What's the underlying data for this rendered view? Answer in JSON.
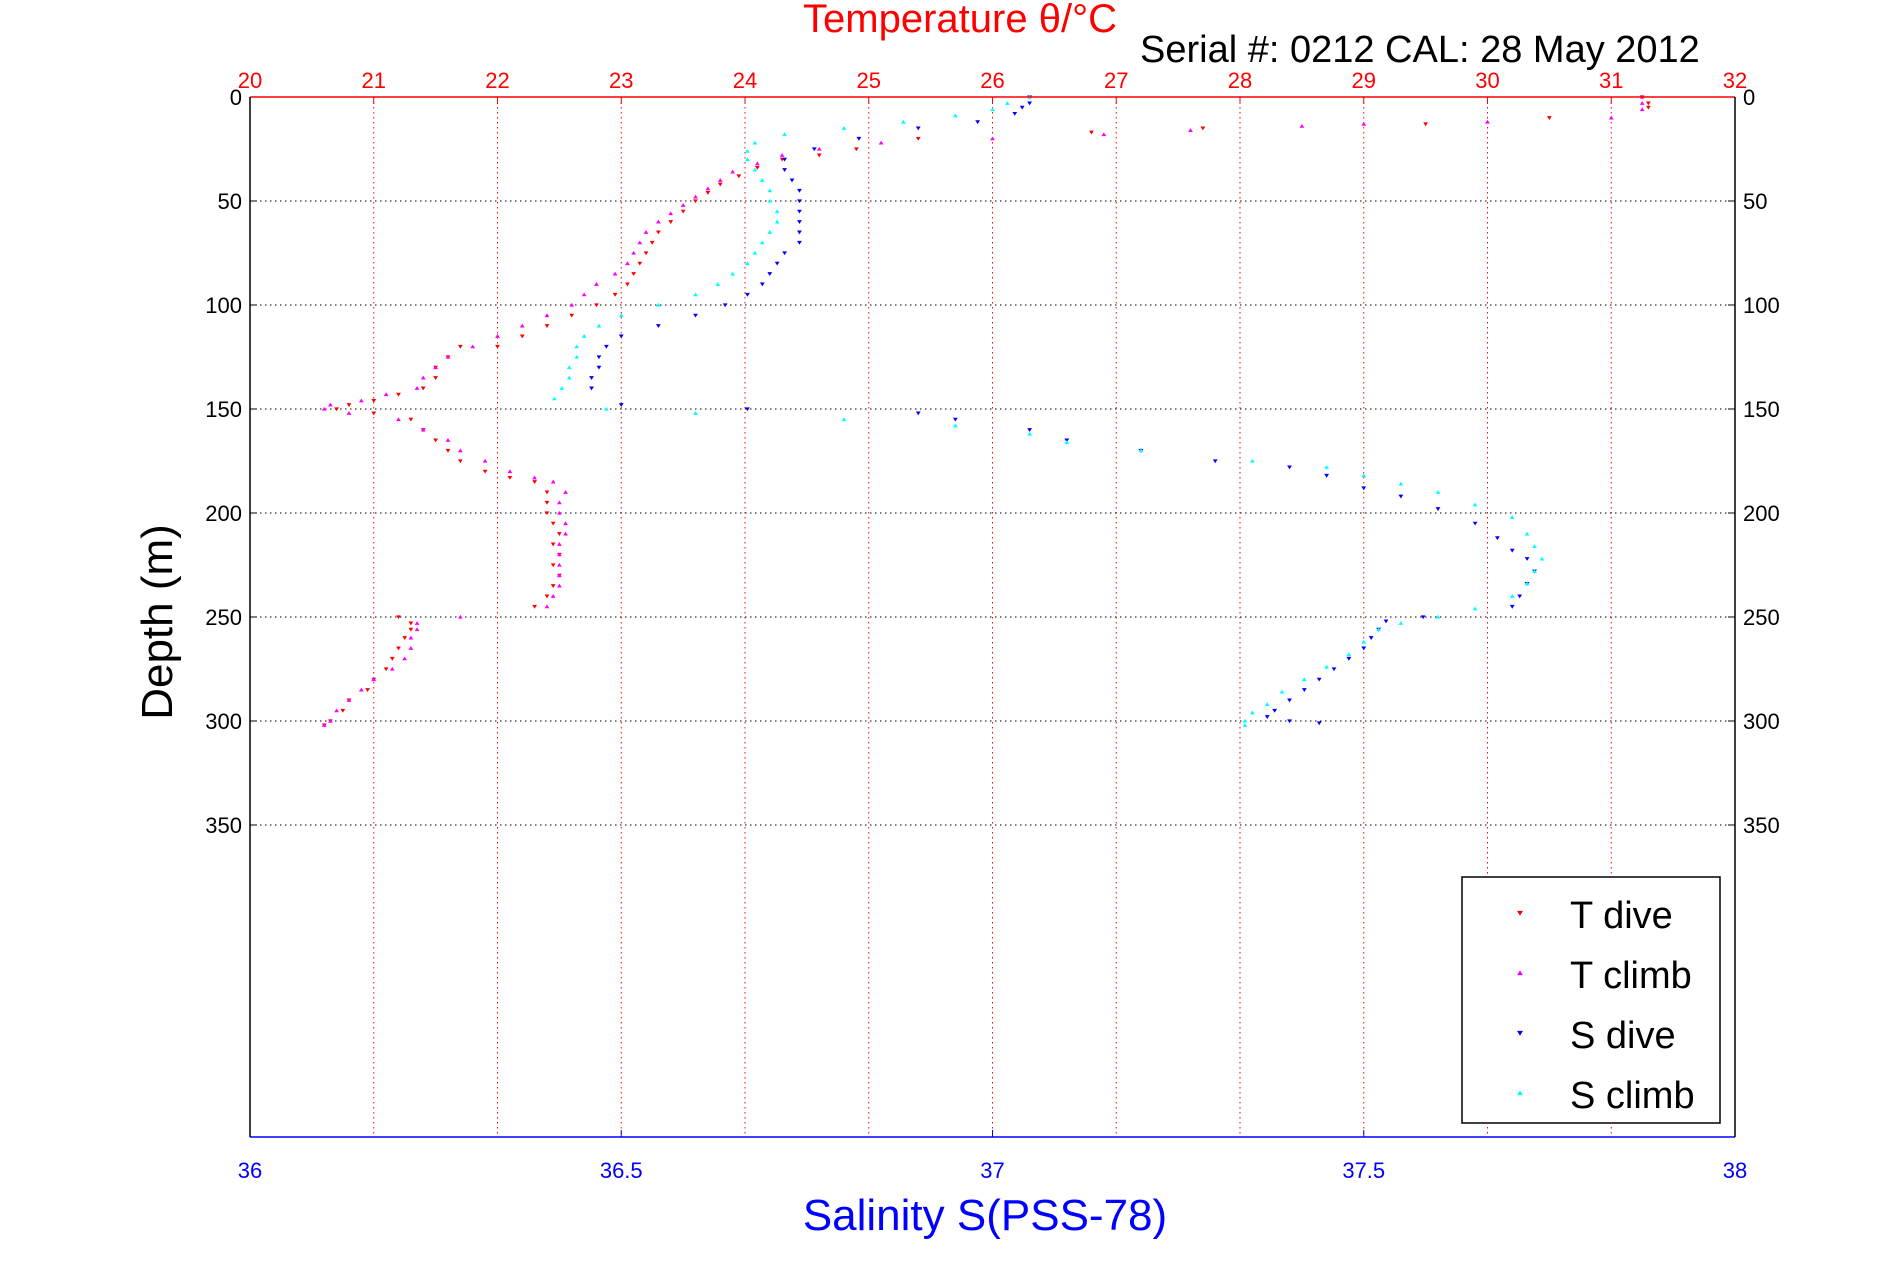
{
  "chart_data": {
    "type": "scatter",
    "title": "Temperature θ/°C",
    "subtitle": "Serial #: 0212  CAL: 28 May 2012",
    "ylabel": "Depth (m)",
    "xlabel_bottom": "Salinity S(PSS-78)",
    "x_top_ticks": [
      "20",
      "21",
      "22",
      "23",
      "24",
      "25",
      "26",
      "27",
      "28",
      "29",
      "30",
      "31",
      "32"
    ],
    "x_bottom_ticks": [
      "36",
      "36.5",
      "37",
      "37.5",
      "38"
    ],
    "y_ticks": [
      "0",
      "50",
      "100",
      "150",
      "200",
      "250",
      "300",
      "350"
    ],
    "x_top_range": [
      20,
      32
    ],
    "x_bottom_range": [
      36,
      38
    ],
    "y_range": [
      0,
      500
    ],
    "y_reversed": true,
    "grid": true,
    "legend_position": "bottom-right",
    "colors": {
      "temperature_axis": "#ff0000",
      "salinity_axis": "#0000ff",
      "t_dive": "#ff0000",
      "t_climb": "#ff00ff",
      "s_dive": "#0000ff",
      "s_climb": "#00ffff"
    },
    "series": [
      {
        "name": "T dive",
        "axis": "temperature",
        "marker": "triangle-down",
        "color": "#ff0000",
        "points": [
          [
            31.25,
            0
          ],
          [
            31.3,
            3
          ],
          [
            31.3,
            5
          ],
          [
            30.5,
            10
          ],
          [
            29.5,
            13
          ],
          [
            27.7,
            15
          ],
          [
            26.8,
            17
          ],
          [
            25.4,
            20
          ],
          [
            24.9,
            25
          ],
          [
            24.6,
            28
          ],
          [
            24.3,
            30
          ],
          [
            24.1,
            34
          ],
          [
            23.95,
            38
          ],
          [
            23.8,
            42
          ],
          [
            23.7,
            46
          ],
          [
            23.6,
            50
          ],
          [
            23.5,
            55
          ],
          [
            23.4,
            60
          ],
          [
            23.3,
            65
          ],
          [
            23.25,
            70
          ],
          [
            23.2,
            75
          ],
          [
            23.15,
            80
          ],
          [
            23.1,
            85
          ],
          [
            23.05,
            90
          ],
          [
            22.95,
            95
          ],
          [
            22.8,
            100
          ],
          [
            22.6,
            105
          ],
          [
            22.4,
            110
          ],
          [
            22.2,
            115
          ],
          [
            22.0,
            120
          ],
          [
            21.7,
            120
          ],
          [
            21.6,
            125
          ],
          [
            21.5,
            130
          ],
          [
            21.5,
            135
          ],
          [
            21.4,
            140
          ],
          [
            21.2,
            143
          ],
          [
            21.0,
            146
          ],
          [
            20.8,
            148
          ],
          [
            20.7,
            150
          ],
          [
            21.0,
            152
          ],
          [
            21.3,
            155
          ],
          [
            21.4,
            160
          ],
          [
            21.5,
            165
          ],
          [
            21.6,
            170
          ],
          [
            21.7,
            175
          ],
          [
            21.9,
            180
          ],
          [
            22.1,
            183
          ],
          [
            22.3,
            185
          ],
          [
            22.4,
            190
          ],
          [
            22.4,
            195
          ],
          [
            22.4,
            200
          ],
          [
            22.45,
            205
          ],
          [
            22.5,
            210
          ],
          [
            22.45,
            215
          ],
          [
            22.5,
            220
          ],
          [
            22.45,
            225
          ],
          [
            22.5,
            230
          ],
          [
            22.45,
            235
          ],
          [
            22.4,
            240
          ],
          [
            22.3,
            245
          ],
          [
            21.2,
            250
          ],
          [
            21.3,
            253
          ],
          [
            21.3,
            256
          ],
          [
            21.25,
            260
          ],
          [
            21.2,
            265
          ],
          [
            21.15,
            270
          ],
          [
            21.1,
            275
          ],
          [
            21.0,
            280
          ],
          [
            20.95,
            285
          ],
          [
            20.8,
            290
          ],
          [
            20.75,
            295
          ],
          [
            20.65,
            300
          ],
          [
            20.6,
            302
          ]
        ]
      },
      {
        "name": "T climb",
        "axis": "temperature",
        "marker": "triangle-up",
        "color": "#ff00ff",
        "points": [
          [
            31.25,
            0
          ],
          [
            31.25,
            3
          ],
          [
            31.25,
            6
          ],
          [
            31.0,
            10
          ],
          [
            30.0,
            12
          ],
          [
            29.0,
            13
          ],
          [
            28.5,
            14
          ],
          [
            27.6,
            16
          ],
          [
            26.9,
            18
          ],
          [
            26.0,
            20
          ],
          [
            25.1,
            22
          ],
          [
            24.6,
            25
          ],
          [
            24.3,
            28
          ],
          [
            24.1,
            32
          ],
          [
            23.9,
            36
          ],
          [
            23.8,
            40
          ],
          [
            23.7,
            44
          ],
          [
            23.6,
            48
          ],
          [
            23.5,
            52
          ],
          [
            23.4,
            56
          ],
          [
            23.3,
            60
          ],
          [
            23.2,
            65
          ],
          [
            23.15,
            70
          ],
          [
            23.1,
            75
          ],
          [
            23.05,
            80
          ],
          [
            22.95,
            85
          ],
          [
            22.8,
            90
          ],
          [
            22.7,
            95
          ],
          [
            22.6,
            100
          ],
          [
            22.4,
            105
          ],
          [
            22.2,
            110
          ],
          [
            22.0,
            115
          ],
          [
            21.8,
            120
          ],
          [
            21.6,
            125
          ],
          [
            21.5,
            130
          ],
          [
            21.4,
            135
          ],
          [
            21.35,
            140
          ],
          [
            21.1,
            143
          ],
          [
            20.9,
            146
          ],
          [
            20.65,
            148
          ],
          [
            20.6,
            150
          ],
          [
            20.8,
            152
          ],
          [
            21.2,
            155
          ],
          [
            21.4,
            160
          ],
          [
            21.6,
            165
          ],
          [
            21.7,
            170
          ],
          [
            21.9,
            175
          ],
          [
            22.1,
            180
          ],
          [
            22.3,
            183
          ],
          [
            22.45,
            185
          ],
          [
            22.55,
            190
          ],
          [
            22.5,
            195
          ],
          [
            22.5,
            200
          ],
          [
            22.55,
            205
          ],
          [
            22.55,
            210
          ],
          [
            22.5,
            215
          ],
          [
            22.5,
            220
          ],
          [
            22.5,
            225
          ],
          [
            22.5,
            230
          ],
          [
            22.5,
            235
          ],
          [
            22.45,
            240
          ],
          [
            22.4,
            245
          ],
          [
            21.7,
            250
          ],
          [
            21.35,
            253
          ],
          [
            21.35,
            256
          ],
          [
            21.3,
            260
          ],
          [
            21.3,
            265
          ],
          [
            21.25,
            270
          ],
          [
            21.15,
            275
          ],
          [
            21.0,
            280
          ],
          [
            20.9,
            285
          ],
          [
            20.8,
            290
          ],
          [
            20.7,
            295
          ],
          [
            20.65,
            300
          ],
          [
            20.6,
            302
          ]
        ]
      },
      {
        "name": "S dive",
        "axis": "salinity",
        "marker": "triangle-down",
        "color": "#0000ff",
        "points": [
          [
            37.05,
            0
          ],
          [
            37.05,
            3
          ],
          [
            37.04,
            5
          ],
          [
            37.03,
            8
          ],
          [
            36.98,
            12
          ],
          [
            36.9,
            15
          ],
          [
            36.82,
            20
          ],
          [
            36.76,
            25
          ],
          [
            36.72,
            30
          ],
          [
            36.72,
            35
          ],
          [
            36.73,
            40
          ],
          [
            36.74,
            45
          ],
          [
            36.74,
            50
          ],
          [
            36.74,
            55
          ],
          [
            36.74,
            60
          ],
          [
            36.74,
            65
          ],
          [
            36.74,
            70
          ],
          [
            36.72,
            75
          ],
          [
            36.71,
            80
          ],
          [
            36.7,
            85
          ],
          [
            36.69,
            90
          ],
          [
            36.67,
            95
          ],
          [
            36.64,
            100
          ],
          [
            36.6,
            105
          ],
          [
            36.55,
            110
          ],
          [
            36.5,
            115
          ],
          [
            36.48,
            120
          ],
          [
            36.47,
            125
          ],
          [
            36.47,
            130
          ],
          [
            36.46,
            135
          ],
          [
            36.46,
            140
          ],
          [
            36.5,
            148
          ],
          [
            36.67,
            150
          ],
          [
            36.9,
            152
          ],
          [
            36.95,
            155
          ],
          [
            37.05,
            160
          ],
          [
            37.1,
            165
          ],
          [
            37.2,
            170
          ],
          [
            37.3,
            175
          ],
          [
            37.4,
            178
          ],
          [
            37.45,
            182
          ],
          [
            37.5,
            188
          ],
          [
            37.55,
            192
          ],
          [
            37.6,
            198
          ],
          [
            37.65,
            205
          ],
          [
            37.68,
            212
          ],
          [
            37.7,
            218
          ],
          [
            37.72,
            222
          ],
          [
            37.73,
            228
          ],
          [
            37.72,
            234
          ],
          [
            37.71,
            240
          ],
          [
            37.7,
            245
          ],
          [
            37.58,
            250
          ],
          [
            37.53,
            252
          ],
          [
            37.52,
            256
          ],
          [
            37.51,
            260
          ],
          [
            37.5,
            265
          ],
          [
            37.48,
            270
          ],
          [
            37.46,
            275
          ],
          [
            37.44,
            280
          ],
          [
            37.42,
            285
          ],
          [
            37.4,
            290
          ],
          [
            37.38,
            295
          ],
          [
            37.37,
            298
          ],
          [
            37.4,
            300
          ],
          [
            37.44,
            301
          ]
        ]
      },
      {
        "name": "S climb",
        "axis": "salinity",
        "marker": "triangle-up",
        "color": "#00ffff",
        "points": [
          [
            37.05,
            0
          ],
          [
            37.02,
            3
          ],
          [
            37.0,
            6
          ],
          [
            36.95,
            9
          ],
          [
            36.88,
            12
          ],
          [
            36.8,
            15
          ],
          [
            36.72,
            18
          ],
          [
            36.68,
            22
          ],
          [
            36.67,
            26
          ],
          [
            36.67,
            30
          ],
          [
            36.68,
            35
          ],
          [
            36.69,
            40
          ],
          [
            36.7,
            45
          ],
          [
            36.7,
            50
          ],
          [
            36.71,
            55
          ],
          [
            36.71,
            60
          ],
          [
            36.7,
            65
          ],
          [
            36.69,
            70
          ],
          [
            36.68,
            75
          ],
          [
            36.67,
            80
          ],
          [
            36.65,
            85
          ],
          [
            36.63,
            90
          ],
          [
            36.6,
            95
          ],
          [
            36.55,
            100
          ],
          [
            36.5,
            105
          ],
          [
            36.47,
            110
          ],
          [
            36.45,
            115
          ],
          [
            36.44,
            120
          ],
          [
            36.44,
            125
          ],
          [
            36.43,
            130
          ],
          [
            36.43,
            135
          ],
          [
            36.42,
            140
          ],
          [
            36.41,
            145
          ],
          [
            36.48,
            150
          ],
          [
            36.6,
            152
          ],
          [
            36.8,
            155
          ],
          [
            36.95,
            158
          ],
          [
            37.05,
            162
          ],
          [
            37.1,
            166
          ],
          [
            37.2,
            170
          ],
          [
            37.35,
            175
          ],
          [
            37.45,
            178
          ],
          [
            37.5,
            182
          ],
          [
            37.55,
            186
          ],
          [
            37.6,
            190
          ],
          [
            37.65,
            196
          ],
          [
            37.7,
            202
          ],
          [
            37.72,
            210
          ],
          [
            37.73,
            216
          ],
          [
            37.74,
            222
          ],
          [
            37.73,
            228
          ],
          [
            37.72,
            234
          ],
          [
            37.7,
            240
          ],
          [
            37.65,
            246
          ],
          [
            37.6,
            250
          ],
          [
            37.55,
            253
          ],
          [
            37.52,
            256
          ],
          [
            37.5,
            262
          ],
          [
            37.48,
            268
          ],
          [
            37.45,
            274
          ],
          [
            37.42,
            280
          ],
          [
            37.39,
            286
          ],
          [
            37.37,
            292
          ],
          [
            37.35,
            296
          ],
          [
            37.34,
            300
          ],
          [
            37.34,
            302
          ]
        ]
      }
    ]
  }
}
